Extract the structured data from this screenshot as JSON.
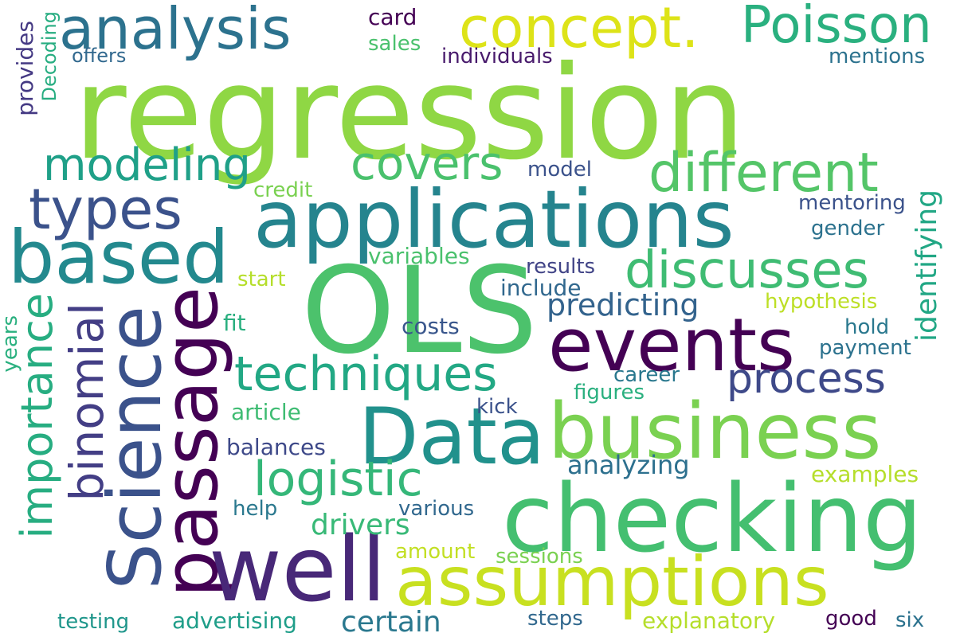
{
  "words": {
    "regression": {
      "text": "regression",
      "color": "#8fd744"
    },
    "ols": {
      "text": "OLS",
      "color": "#4cc26c"
    },
    "applications": {
      "text": "applications",
      "color": "#25848e"
    },
    "checking": {
      "text": "checking",
      "color": "#44bf70"
    },
    "data": {
      "text": "Data",
      "color": "#21918c"
    },
    "science": {
      "text": "Science",
      "color": "#3b528b"
    },
    "passage": {
      "text": "passage",
      "color": "#440154"
    },
    "well": {
      "text": "well",
      "color": "#482878"
    },
    "events": {
      "text": "events",
      "color": "#440154"
    },
    "business": {
      "text": "business",
      "color": "#7ad151"
    },
    "assumptions": {
      "text": "assumptions",
      "color": "#c8e020"
    },
    "based": {
      "text": "based",
      "color": "#23898e"
    },
    "analysis": {
      "text": "analysis",
      "color": "#2c728e"
    },
    "concept": {
      "text": "concept.",
      "color": "#dde318"
    },
    "poisson": {
      "text": "Poisson",
      "color": "#2ab07f"
    },
    "different": {
      "text": "different",
      "color": "#54c568"
    },
    "covers": {
      "text": "covers",
      "color": "#4ac16d"
    },
    "modeling": {
      "text": "modeling",
      "color": "#1fa088"
    },
    "types": {
      "text": "types",
      "color": "#3b528b"
    },
    "discusses": {
      "text": "discusses",
      "color": "#3fbc73"
    },
    "techniques": {
      "text": "techniques",
      "color": "#22a884"
    },
    "importance": {
      "text": "importance",
      "color": "#27ad81"
    },
    "binomial": {
      "text": "binomial",
      "color": "#433e85"
    },
    "logistic": {
      "text": "logistic",
      "color": "#35b779"
    },
    "process": {
      "text": "process",
      "color": "#3e4989"
    },
    "predicting": {
      "text": "predicting",
      "color": "#33638d"
    },
    "identifying": {
      "text": "identifying",
      "color": "#22a785"
    },
    "drivers": {
      "text": "drivers",
      "color": "#38b977"
    },
    "analyzing": {
      "text": "analyzing",
      "color": "#2d708e"
    },
    "certain": {
      "text": "certain",
      "color": "#2a788e"
    },
    "advertising": {
      "text": "advertising",
      "color": "#1f9e89"
    },
    "explanatory": {
      "text": "explanatory",
      "color": "#b5de2b"
    },
    "testing": {
      "text": "testing",
      "color": "#1f968b"
    },
    "card": {
      "text": "card",
      "color": "#440154"
    },
    "sales": {
      "text": "sales",
      "color": "#4ac16d"
    },
    "individuals": {
      "text": "individuals",
      "color": "#481a6c"
    },
    "offers": {
      "text": "offers",
      "color": "#31688e"
    },
    "decoding": {
      "text": "Decoding",
      "color": "#27ad81"
    },
    "provides": {
      "text": "provides",
      "color": "#443983"
    },
    "mentions": {
      "text": "mentions",
      "color": "#2c728e"
    },
    "model": {
      "text": "model",
      "color": "#3b528b"
    },
    "credit": {
      "text": "credit",
      "color": "#7ad151"
    },
    "variables": {
      "text": "variables",
      "color": "#4ac16d"
    },
    "start": {
      "text": "start",
      "color": "#b5de2b"
    },
    "results": {
      "text": "results",
      "color": "#414487"
    },
    "include": {
      "text": "include",
      "color": "#31688e"
    },
    "mentoring": {
      "text": "mentoring",
      "color": "#3b528b"
    },
    "gender": {
      "text": "gender",
      "color": "#2c728e"
    },
    "hypothesis": {
      "text": "hypothesis",
      "color": "#bddf26"
    },
    "hold": {
      "text": "hold",
      "color": "#2a788e"
    },
    "payment": {
      "text": "payment",
      "color": "#2c728e"
    },
    "fit": {
      "text": "fit",
      "color": "#29af7f"
    },
    "costs": {
      "text": "costs",
      "color": "#39568c"
    },
    "years": {
      "text": "years",
      "color": "#2ab07f"
    },
    "career": {
      "text": "career",
      "color": "#2a788e"
    },
    "figures": {
      "text": "figures",
      "color": "#2ab07f"
    },
    "article": {
      "text": "article",
      "color": "#3fbc73"
    },
    "kick": {
      "text": "kick",
      "color": "#3b528b"
    },
    "balances": {
      "text": "balances",
      "color": "#3e4989"
    },
    "examples": {
      "text": "examples",
      "color": "#b5de2b"
    },
    "help": {
      "text": "help",
      "color": "#2a788e"
    },
    "various": {
      "text": "various",
      "color": "#31688e"
    },
    "amount": {
      "text": "amount",
      "color": "#c2df23"
    },
    "sessions": {
      "text": "sessions",
      "color": "#7ad151"
    },
    "steps": {
      "text": "steps",
      "color": "#31688e"
    },
    "good": {
      "text": "good",
      "color": "#440154"
    },
    "six": {
      "text": "six",
      "color": "#2c728e"
    }
  }
}
